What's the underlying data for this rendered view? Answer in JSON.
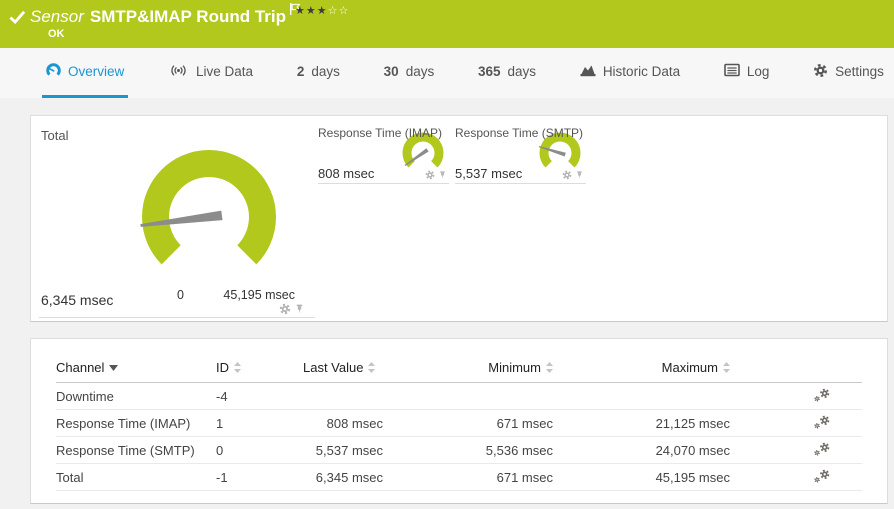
{
  "header": {
    "kind_label": "Sensor",
    "title": "SMTP&IMAP Round Trip",
    "status_text": "OK",
    "stars_filled": "★★★",
    "stars_empty": "☆☆"
  },
  "tabs": [
    {
      "label": "Overview",
      "active": true
    },
    {
      "label": "Live Data",
      "active": false
    },
    {
      "num": "2",
      "label": "days",
      "active": false
    },
    {
      "num": "30",
      "label": "days",
      "active": false
    },
    {
      "num": "365",
      "label": "days",
      "active": false
    },
    {
      "label": "Historic Data",
      "active": false
    },
    {
      "label": "Log",
      "active": false
    },
    {
      "label": "Settings",
      "active": false
    }
  ],
  "gauges": {
    "total": {
      "title": "Total",
      "value_label": "6,345 msec",
      "scale_min_label": "0",
      "scale_max_label": "45,195 msec",
      "value": 6345,
      "min": 0,
      "max": 45195
    },
    "imap": {
      "title": "Response Time (IMAP)",
      "value_label": "808 msec",
      "value": 808,
      "min": 0,
      "max": 21125
    },
    "smtp": {
      "title": "Response Time (SMTP)",
      "value_label": "5,537 msec",
      "value": 5537,
      "min": 0,
      "max": 24070
    }
  },
  "icons": {
    "status": "check-icon",
    "bookmark": "flag-icon",
    "rating": "star-icons",
    "overview_tab": "gauge-icon",
    "livedata_tab": "broadcast-icon",
    "historic_tab": "area-chart-icon",
    "log_tab": "log-list-icon",
    "settings_tab": "gear-icon",
    "tile_tools": [
      "gear-icon",
      "pin-icon"
    ],
    "row_action": "channel-settings-gears-icon",
    "sort": "sort-arrows-icon"
  },
  "colors": {
    "status_green": "#b2c81c",
    "accent_blue": "#1a96d2",
    "needle_gray": "#8c8c8c"
  },
  "table": {
    "columns": [
      "Channel",
      "ID",
      "Last Value",
      "Minimum",
      "Maximum"
    ],
    "sorted_by": "Channel",
    "rows": [
      {
        "channel": "Downtime",
        "id": "-4",
        "last": "",
        "min": "",
        "max": ""
      },
      {
        "channel": "Response Time (IMAP)",
        "id": "1",
        "last": "808 msec",
        "min": "671 msec",
        "max": "21,125 msec"
      },
      {
        "channel": "Response Time (SMTP)",
        "id": "0",
        "last": "5,537 msec",
        "min": "5,536 msec",
        "max": "24,070 msec"
      },
      {
        "channel": "Total",
        "id": "-1",
        "last": "6,345 msec",
        "min": "671 msec",
        "max": "45,195 msec"
      }
    ]
  }
}
